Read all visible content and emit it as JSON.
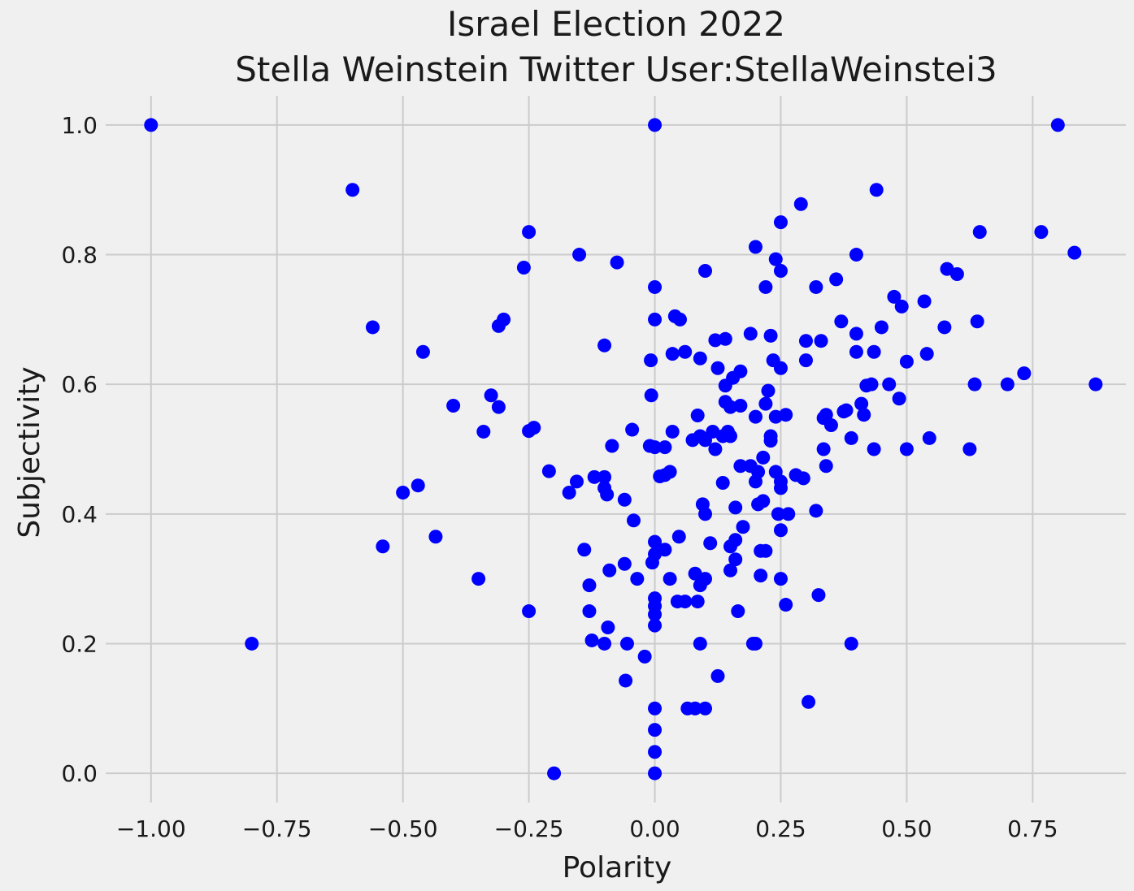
{
  "chart_data": {
    "type": "scatter",
    "title": "Israel Election 2022",
    "subtitle": "Stella Weinstein Twitter User:StellaWeinstei3",
    "xlabel": "Polarity",
    "ylabel": "Subjectivity",
    "xlim": [
      -1.09,
      0.935
    ],
    "ylim": [
      -0.045,
      1.045
    ],
    "xticks": [
      -1.0,
      -0.75,
      -0.5,
      -0.25,
      0.0,
      0.25,
      0.5,
      0.75
    ],
    "xtick_labels": [
      "−1.00",
      "−0.75",
      "−0.50",
      "−0.25",
      "0.00",
      "0.25",
      "0.50",
      "0.75"
    ],
    "yticks": [
      0.0,
      0.2,
      0.4,
      0.6,
      0.8,
      1.0
    ],
    "ytick_labels": [
      "0.0",
      "0.2",
      "0.4",
      "0.6",
      "0.8",
      "1.0"
    ],
    "grid": true,
    "point_color": "#0000ff",
    "background": "#f0f0f0",
    "grid_color": "#cbcbcb",
    "points": [
      [
        -1.0,
        1.0
      ],
      [
        0.0,
        1.0
      ],
      [
        0.8,
        1.0
      ],
      [
        -0.6,
        0.9
      ],
      [
        0.44,
        0.9
      ],
      [
        0.29,
        0.878
      ],
      [
        0.25,
        0.85
      ],
      [
        -0.8,
        0.2
      ],
      [
        -0.2,
        0.0
      ],
      [
        -0.56,
        0.688
      ],
      [
        -0.46,
        0.65
      ],
      [
        -0.4,
        0.567
      ],
      [
        -0.5,
        0.433
      ],
      [
        -0.47,
        0.444
      ],
      [
        -0.54,
        0.35
      ],
      [
        -0.435,
        0.365
      ],
      [
        -0.35,
        0.3
      ],
      [
        -0.34,
        0.527
      ],
      [
        -0.325,
        0.583
      ],
      [
        -0.31,
        0.565
      ],
      [
        -0.31,
        0.69
      ],
      [
        -0.3,
        0.7
      ],
      [
        -0.26,
        0.78
      ],
      [
        -0.25,
        0.835
      ],
      [
        -0.25,
        0.528
      ],
      [
        -0.24,
        0.533
      ],
      [
        -0.25,
        0.25
      ],
      [
        -0.21,
        0.466
      ],
      [
        -0.17,
        0.433
      ],
      [
        -0.155,
        0.45
      ],
      [
        -0.15,
        0.8
      ],
      [
        -0.14,
        0.345
      ],
      [
        -0.13,
        0.29
      ],
      [
        -0.13,
        0.25
      ],
      [
        -0.125,
        0.205
      ],
      [
        -0.12,
        0.457
      ],
      [
        -0.1,
        0.66
      ],
      [
        -0.1,
        0.457
      ],
      [
        -0.1,
        0.44
      ],
      [
        -0.095,
        0.43
      ],
      [
        -0.1,
        0.2
      ],
      [
        -0.093,
        0.225
      ],
      [
        -0.09,
        0.313
      ],
      [
        -0.085,
        0.505
      ],
      [
        -0.075,
        0.788
      ],
      [
        -0.06,
        0.323
      ],
      [
        -0.06,
        0.422
      ],
      [
        -0.055,
        0.2
      ],
      [
        -0.058,
        0.143
      ],
      [
        -0.045,
        0.53
      ],
      [
        -0.042,
        0.39
      ],
      [
        -0.035,
        0.3
      ],
      [
        -0.02,
        0.18
      ],
      [
        -0.01,
        0.505
      ],
      [
        -0.008,
        0.637
      ],
      [
        -0.007,
        0.583
      ],
      [
        -0.005,
        0.325
      ],
      [
        0.0,
        0.75
      ],
      [
        0.0,
        0.7
      ],
      [
        0.0,
        0.503
      ],
      [
        0.0,
        0.357
      ],
      [
        0.0,
        0.338
      ],
      [
        0.0,
        0.27
      ],
      [
        0.0,
        0.258
      ],
      [
        0.0,
        0.245
      ],
      [
        0.0,
        0.228
      ],
      [
        0.0,
        0.1
      ],
      [
        0.0,
        0.067
      ],
      [
        0.0,
        0.033
      ],
      [
        0.0,
        0.0
      ],
      [
        0.01,
        0.458
      ],
      [
        0.02,
        0.345
      ],
      [
        0.02,
        0.503
      ],
      [
        0.02,
        0.46
      ],
      [
        0.03,
        0.3
      ],
      [
        0.03,
        0.465
      ],
      [
        0.035,
        0.527
      ],
      [
        0.035,
        0.647
      ],
      [
        0.04,
        0.705
      ],
      [
        0.05,
        0.7
      ],
      [
        0.048,
        0.365
      ],
      [
        0.045,
        0.265
      ],
      [
        0.06,
        0.265
      ],
      [
        0.06,
        0.65
      ],
      [
        0.065,
        0.1
      ],
      [
        0.08,
        0.1
      ],
      [
        0.1,
        0.1
      ],
      [
        0.075,
        0.514
      ],
      [
        0.08,
        0.308
      ],
      [
        0.085,
        0.552
      ],
      [
        0.085,
        0.265
      ],
      [
        0.09,
        0.64
      ],
      [
        0.09,
        0.52
      ],
      [
        0.09,
        0.29
      ],
      [
        0.09,
        0.2
      ],
      [
        0.095,
        0.415
      ],
      [
        0.1,
        0.775
      ],
      [
        0.1,
        0.4
      ],
      [
        0.1,
        0.3
      ],
      [
        0.1,
        0.514
      ],
      [
        0.11,
        0.355
      ],
      [
        0.115,
        0.527
      ],
      [
        0.12,
        0.668
      ],
      [
        0.12,
        0.5
      ],
      [
        0.125,
        0.15
      ],
      [
        0.125,
        0.625
      ],
      [
        0.135,
        0.52
      ],
      [
        0.135,
        0.448
      ],
      [
        0.14,
        0.67
      ],
      [
        0.14,
        0.573
      ],
      [
        0.14,
        0.598
      ],
      [
        0.145,
        0.527
      ],
      [
        0.15,
        0.565
      ],
      [
        0.15,
        0.52
      ],
      [
        0.15,
        0.35
      ],
      [
        0.15,
        0.313
      ],
      [
        0.155,
        0.61
      ],
      [
        0.16,
        0.33
      ],
      [
        0.16,
        0.41
      ],
      [
        0.16,
        0.36
      ],
      [
        0.165,
        0.25
      ],
      [
        0.17,
        0.62
      ],
      [
        0.17,
        0.567
      ],
      [
        0.17,
        0.474
      ],
      [
        0.175,
        0.38
      ],
      [
        0.19,
        0.678
      ],
      [
        0.19,
        0.474
      ],
      [
        0.195,
        0.2
      ],
      [
        0.2,
        0.812
      ],
      [
        0.2,
        0.55
      ],
      [
        0.2,
        0.45
      ],
      [
        0.2,
        0.2
      ],
      [
        0.205,
        0.465
      ],
      [
        0.205,
        0.415
      ],
      [
        0.21,
        0.305
      ],
      [
        0.21,
        0.343
      ],
      [
        0.215,
        0.487
      ],
      [
        0.215,
        0.42
      ],
      [
        0.22,
        0.75
      ],
      [
        0.22,
        0.57
      ],
      [
        0.22,
        0.343
      ],
      [
        0.225,
        0.59
      ],
      [
        0.23,
        0.52
      ],
      [
        0.23,
        0.513
      ],
      [
        0.23,
        0.675
      ],
      [
        0.235,
        0.637
      ],
      [
        0.24,
        0.793
      ],
      [
        0.24,
        0.465
      ],
      [
        0.24,
        0.55
      ],
      [
        0.245,
        0.4
      ],
      [
        0.25,
        0.3
      ],
      [
        0.25,
        0.375
      ],
      [
        0.25,
        0.44
      ],
      [
        0.25,
        0.45
      ],
      [
        0.25,
        0.775
      ],
      [
        0.25,
        0.625
      ],
      [
        0.26,
        0.553
      ],
      [
        0.26,
        0.26
      ],
      [
        0.265,
        0.4
      ],
      [
        0.28,
        0.46
      ],
      [
        0.295,
        0.455
      ],
      [
        0.3,
        0.667
      ],
      [
        0.3,
        0.637
      ],
      [
        0.305,
        0.11
      ],
      [
        0.32,
        0.75
      ],
      [
        0.32,
        0.405
      ],
      [
        0.325,
        0.275
      ],
      [
        0.33,
        0.667
      ],
      [
        0.335,
        0.5
      ],
      [
        0.335,
        0.548
      ],
      [
        0.34,
        0.553
      ],
      [
        0.34,
        0.474
      ],
      [
        0.35,
        0.537
      ],
      [
        0.36,
        0.762
      ],
      [
        0.37,
        0.697
      ],
      [
        0.375,
        0.558
      ],
      [
        0.38,
        0.56
      ],
      [
        0.39,
        0.2
      ],
      [
        0.39,
        0.517
      ],
      [
        0.4,
        0.8
      ],
      [
        0.4,
        0.678
      ],
      [
        0.4,
        0.65
      ],
      [
        0.41,
        0.57
      ],
      [
        0.415,
        0.553
      ],
      [
        0.42,
        0.598
      ],
      [
        0.43,
        0.6
      ],
      [
        0.435,
        0.65
      ],
      [
        0.435,
        0.5
      ],
      [
        0.45,
        0.688
      ],
      [
        0.465,
        0.6
      ],
      [
        0.475,
        0.735
      ],
      [
        0.485,
        0.578
      ],
      [
        0.49,
        0.72
      ],
      [
        0.5,
        0.5
      ],
      [
        0.5,
        0.635
      ],
      [
        0.535,
        0.728
      ],
      [
        0.54,
        0.647
      ],
      [
        0.545,
        0.517
      ],
      [
        0.575,
        0.688
      ],
      [
        0.58,
        0.778
      ],
      [
        0.6,
        0.77
      ],
      [
        0.625,
        0.5
      ],
      [
        0.635,
        0.6
      ],
      [
        0.64,
        0.697
      ],
      [
        0.645,
        0.835
      ],
      [
        0.7,
        0.6
      ],
      [
        0.733,
        0.617
      ],
      [
        0.767,
        0.835
      ],
      [
        0.833,
        0.803
      ],
      [
        0.875,
        0.6
      ]
    ]
  }
}
